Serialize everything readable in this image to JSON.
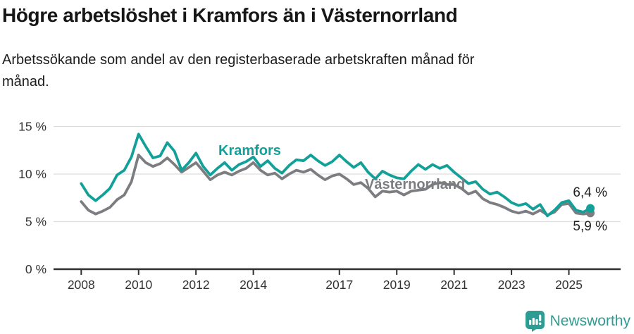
{
  "header": {
    "title": "Högre arbetslöshet i Kramfors än i Västernorrland",
    "subtitle_line1": "Arbetssökande som andel av den registerbaserade arbetskraften månad för",
    "subtitle_line2": "månad."
  },
  "chart_data": {
    "type": "line",
    "title": "Högre arbetslöshet i Kramfors än i Västernorrland",
    "subtitle": "Arbetssökande som andel av den registerbaserade arbetskraften månad för månad.",
    "x_start": 2008,
    "x_step": 0.25,
    "x_end": 2025.75,
    "y_axis": {
      "tick_values": [
        0,
        5,
        10,
        15
      ],
      "tick_labels": [
        "0 %",
        "5 %",
        "10 %",
        "15 %"
      ],
      "ylim": [
        0,
        16.5
      ],
      "grid": true
    },
    "x_axis": {
      "tick_years": [
        2008,
        2010,
        2012,
        2014,
        2017,
        2019,
        2021,
        2023,
        2025
      ],
      "tick_labels": [
        "2008",
        "2010",
        "2012",
        "2014",
        "2017",
        "2019",
        "2021",
        "2023",
        "2025"
      ]
    },
    "grid_color": "#dddddd",
    "axis_color": "#2f2f2f",
    "tick_text_color": "#333333",
    "series": [
      {
        "name": "Kramfors",
        "color": "#12A099",
        "end_label": "6,4 %",
        "end_value": 6.4,
        "values": [
          9.0,
          7.8,
          7.2,
          7.8,
          8.5,
          9.9,
          10.4,
          11.8,
          14.2,
          12.9,
          11.7,
          11.9,
          13.3,
          12.4,
          10.4,
          11.2,
          12.2,
          10.8,
          9.9,
          10.6,
          11.2,
          10.4,
          11.0,
          11.3,
          11.8,
          10.8,
          11.4,
          10.6,
          10.1,
          10.9,
          11.5,
          11.4,
          12.0,
          11.4,
          10.9,
          11.3,
          12.0,
          11.3,
          10.7,
          11.2,
          10.2,
          9.5,
          10.3,
          9.9,
          9.6,
          9.5,
          10.3,
          11.0,
          10.5,
          11.0,
          10.6,
          10.9,
          10.2,
          9.6,
          9.0,
          9.2,
          8.4,
          7.9,
          8.1,
          7.6,
          7.0,
          6.7,
          6.9,
          6.3,
          6.8,
          5.6,
          6.2,
          7.0,
          7.2,
          6.2,
          6.0,
          6.4
        ]
      },
      {
        "name": "Västernorrland",
        "color": "#7C7D80",
        "end_label": "5,9 %",
        "end_value": 5.9,
        "values": [
          7.1,
          6.2,
          5.8,
          6.1,
          6.5,
          7.3,
          7.8,
          9.2,
          12.0,
          11.2,
          10.8,
          11.1,
          11.7,
          11.0,
          10.2,
          10.7,
          11.2,
          10.3,
          9.4,
          9.9,
          10.2,
          9.9,
          10.3,
          10.6,
          11.2,
          10.4,
          9.9,
          10.1,
          9.5,
          10.0,
          10.4,
          10.2,
          10.5,
          9.9,
          9.4,
          9.8,
          10.0,
          9.5,
          8.9,
          9.1,
          8.5,
          7.6,
          8.2,
          8.1,
          8.2,
          7.8,
          8.2,
          8.3,
          8.4,
          8.9,
          9.1,
          8.9,
          8.9,
          8.5,
          7.9,
          8.2,
          7.4,
          7.0,
          6.8,
          6.5,
          6.1,
          5.9,
          6.1,
          5.8,
          6.2,
          5.7,
          6.0,
          6.8,
          6.9,
          5.9,
          5.8,
          5.9
        ]
      }
    ]
  },
  "branding": {
    "logo_text": "Newsworthy",
    "brand_color": "#2E9C93",
    "icon": "bar-chart-speech-bubble-icon"
  }
}
